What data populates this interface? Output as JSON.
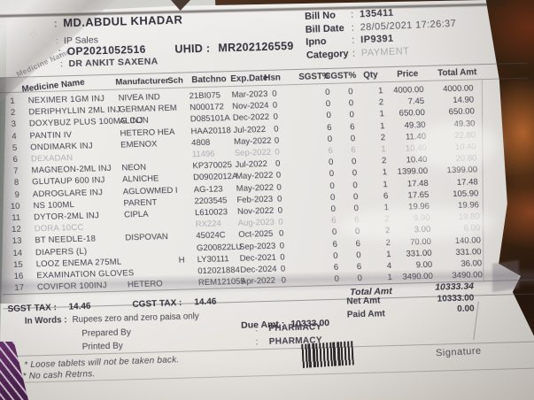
{
  "header": {
    "patient_name": "MD.ABDUL KHADAR",
    "visit_type": "IP Sales",
    "op_no": "OP2021052516",
    "doctor": "DR ANKIT SAXENA",
    "uhid_label": "UHID :",
    "uhid": "MR202126559",
    "bill_no_label": "Bill No",
    "bill_no": "135411",
    "bill_date_label": "Bill Date",
    "bill_date": "28/05/2021 17:26:37",
    "ipno_label": "Ipno",
    "ipno": "IP9391",
    "category_label": "Category",
    "category": "PAYMENT"
  },
  "table": {
    "columns": [
      "Medicine Name",
      "Manufacturer",
      "Sch",
      "Batchno",
      "Exp.Date",
      "Hsn",
      "SGST%",
      "CGST%",
      "Qty",
      "Price",
      "Total Amt"
    ],
    "rows": [
      {
        "no": "1",
        "name": "NEXIMER 1GM INJ",
        "mfr": "NIVEA IND",
        "sch": "",
        "batch": "21BI075",
        "exp": "Mar-2023",
        "hsn": "0",
        "sgst": "0",
        "cgst": "0",
        "qty": "1",
        "price": "4000.00",
        "total": "4000.00"
      },
      {
        "no": "2",
        "name": "DERIPHYLLIN 2ML INJ",
        "mfr": "GERMAN REM",
        "sch": "",
        "batch": "N000172",
        "exp": "Nov-2024",
        "hsn": "0",
        "sgst": "0",
        "cgst": "0",
        "qty": "2",
        "price": "7.45",
        "total": "14.90"
      },
      {
        "no": "3",
        "name": "DOXYBUZ PLUS 100MG INJ",
        "mfr": "ALCON",
        "sch": "",
        "batch": "D085101A",
        "exp": "Dec-2022",
        "hsn": "0",
        "sgst": "0",
        "cgst": "0",
        "qty": "1",
        "price": "650.00",
        "total": "650.00"
      },
      {
        "no": "4",
        "name": "PANTIN IV",
        "mfr": "HETERO HEA",
        "sch": "",
        "batch": "HAA20118",
        "exp": "Jul-2022",
        "hsn": "0",
        "sgst": "6",
        "cgst": "6",
        "qty": "1",
        "price": "49.30",
        "total": "49.30"
      },
      {
        "no": "5",
        "name": "ONDIMARK INJ",
        "mfr": "EMENOX",
        "sch": "",
        "batch": "4808",
        "exp": "May-2022",
        "hsn": "0",
        "sgst": "0",
        "cgst": "0",
        "qty": "2",
        "price": "11.40",
        "total": "22.80",
        "dim_total": true
      },
      {
        "no": "6",
        "name": "DEXADAN",
        "mfr": "",
        "sch": "",
        "batch": "11496",
        "exp": "Sep-2022",
        "hsn": "0",
        "sgst": "6",
        "cgst": "6",
        "qty": "1",
        "price": "10.40",
        "total": "10.40",
        "dim": true
      },
      {
        "no": "7",
        "name": "MAGNEON-2ML INJ",
        "mfr": "NEON",
        "sch": "",
        "batch": "KP370025",
        "exp": "Jul-2022",
        "hsn": "0",
        "sgst": "0",
        "cgst": "0",
        "qty": "2",
        "price": "10.40",
        "total": "20.80",
        "dim_total": true
      },
      {
        "no": "8",
        "name": "GLUTAUP 600 INJ",
        "mfr": "ALNICHE",
        "sch": "",
        "batch": "D0902012A",
        "exp": "May-2022",
        "hsn": "0",
        "sgst": "0",
        "cgst": "0",
        "qty": "1",
        "price": "1399.00",
        "total": "1399.00"
      },
      {
        "no": "9",
        "name": "ADROGLARE INJ",
        "mfr": "AGLOWMED I",
        "sch": "",
        "batch": "AG-123",
        "exp": "May-2022",
        "hsn": "0",
        "sgst": "0",
        "cgst": "0",
        "qty": "1",
        "price": "17.48",
        "total": "17.48"
      },
      {
        "no": "10",
        "name": "NS 100ML",
        "mfr": "PARENT",
        "sch": "",
        "batch": "2203545",
        "exp": "Feb-2023",
        "hsn": "0",
        "sgst": "0",
        "cgst": "0",
        "qty": "6",
        "price": "17.65",
        "total": "105.90"
      },
      {
        "no": "11",
        "name": "DYTOR-2ML INJ",
        "mfr": "CIPLA",
        "sch": "",
        "batch": "L610023",
        "exp": "Nov-2022",
        "hsn": "0",
        "sgst": "0",
        "cgst": "0",
        "qty": "1",
        "price": "19.96",
        "total": "19.96"
      },
      {
        "no": "12",
        "name": "DORA 10CC",
        "mfr": "",
        "sch": "",
        "batch": "RX224",
        "exp": "Aug-2023",
        "hsn": "0",
        "sgst": "6",
        "cgst": "6",
        "qty": "2",
        "price": "9.90",
        "total": "19.80",
        "dim": true
      },
      {
        "no": "13",
        "name": "BT NEEDLE-18",
        "mfr": "DISPOVAN",
        "sch": "",
        "batch": "45024C",
        "exp": "Oct-2025",
        "hsn": "0",
        "sgst": "0",
        "cgst": "0",
        "qty": "2",
        "price": "3.00",
        "total": "6.00",
        "dim_total": true
      },
      {
        "no": "14",
        "name": "DIAPERS (L)",
        "mfr": "",
        "sch": "",
        "batch": "G200822LU",
        "exp": "Sep-2023",
        "hsn": "0",
        "sgst": "6",
        "cgst": "6",
        "qty": "2",
        "price": "70.00",
        "total": "140.00"
      },
      {
        "no": "15",
        "name": "LOOZ ENEMA 275ML",
        "mfr": "",
        "sch": "H",
        "batch": "LY30111",
        "exp": "Dec-2021",
        "hsn": "0",
        "sgst": "0",
        "cgst": "0",
        "qty": "1",
        "price": "331.00",
        "total": "331.00"
      },
      {
        "no": "16",
        "name": "EXAMINATION GLOVES",
        "mfr": "",
        "sch": "",
        "batch": "012021884",
        "exp": "Dec-2024",
        "hsn": "0",
        "sgst": "6",
        "cgst": "6",
        "qty": "4",
        "price": "9.00",
        "total": "36.00"
      },
      {
        "no": "17",
        "name": "COVIFOR 100INJ",
        "mfr": "HETERO",
        "sch": "",
        "batch": "REM121055",
        "exp": "Apr-2022",
        "hsn": "0",
        "sgst": "0",
        "cgst": "0",
        "qty": "1",
        "price": "3490.00",
        "total": "3490.00"
      }
    ]
  },
  "totals": {
    "total_label": "Total Amt",
    "total": "10333.34",
    "sgst_label": "SGST TAX :",
    "sgst": "14.46",
    "cgst_label": "CGST TAX :",
    "cgst": "14.46",
    "net_label": "Net Amt",
    "net": "10333.00",
    "in_words_label": "In Words :",
    "in_words": "Rupees zero and zero paisa only",
    "paid_label": "Paid Amt",
    "paid": "0.00",
    "due_label": "Due Amt :",
    "due": "10333.00"
  },
  "footer": {
    "prepared_label": "Prepared By",
    "prepared": "PHARMACY",
    "printed_label": "Printed By",
    "printed": "PHARMACY",
    "note1": "* Loose tablets will not be taken back.",
    "note2": "* No cash Retrns.",
    "signature": "Signature"
  }
}
